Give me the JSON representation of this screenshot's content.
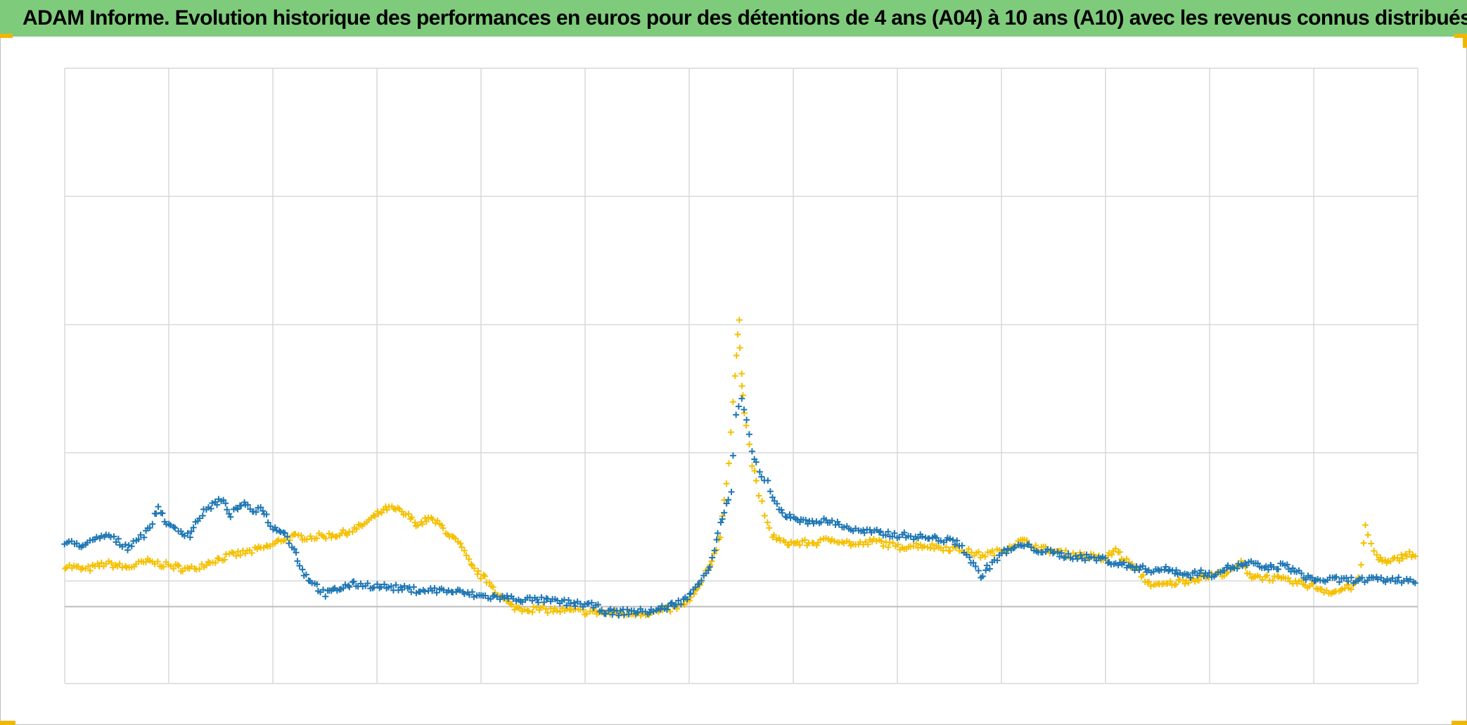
{
  "title": "ADAM Informe. Evolution historique des performances en euros pour des détentions de 4 ans (A04) à 10 ans (A10) avec les revenus connus distribués",
  "colors": {
    "title_bar": "#7fcb7c",
    "series_a04": "#1f77b4",
    "series_a10": "#f5c000",
    "grid": "#d9d9d9",
    "accent_corner": "#f2b600"
  },
  "chart_data": {
    "type": "scatter",
    "title": "ADAM Informe. Evolution historique des performances en euros pour des détentions de 4 ans (A04) à 10 ans (A10) avec les revenus connus distribués",
    "xlabel": "",
    "ylabel": "",
    "x_tick_labels": [],
    "y_tick_labels": [],
    "grid": true,
    "legend": "none",
    "marker": "+",
    "xlim": [
      0,
      1300
    ],
    "ylim": [
      -75,
      525
    ],
    "series": [
      {
        "color": "#1f77b4",
        "points": [
          [
            0,
            62
          ],
          [
            20,
            60
          ],
          [
            40,
            70
          ],
          [
            60,
            58
          ],
          [
            80,
            74
          ],
          [
            90,
            97
          ],
          [
            100,
            78
          ],
          [
            120,
            70
          ],
          [
            130,
            88
          ],
          [
            140,
            98
          ],
          [
            150,
            104
          ],
          [
            160,
            90
          ],
          [
            170,
            100
          ],
          [
            180,
            94
          ],
          [
            190,
            96
          ],
          [
            200,
            76
          ],
          [
            210,
            75
          ],
          [
            220,
            56
          ],
          [
            230,
            32
          ],
          [
            240,
            22
          ],
          [
            250,
            12
          ],
          [
            260,
            16
          ],
          [
            270,
            20
          ],
          [
            280,
            22
          ],
          [
            300,
            20
          ],
          [
            320,
            18
          ],
          [
            340,
            16
          ],
          [
            360,
            16
          ],
          [
            380,
            14
          ],
          [
            400,
            10
          ],
          [
            420,
            9
          ],
          [
            440,
            7
          ],
          [
            460,
            6
          ],
          [
            480,
            4
          ],
          [
            500,
            2
          ],
          [
            510,
            0
          ],
          [
            520,
            -5
          ],
          [
            530,
            -6
          ],
          [
            540,
            -5
          ],
          [
            560,
            -5
          ],
          [
            570,
            -3
          ],
          [
            580,
            0
          ],
          [
            590,
            4
          ],
          [
            600,
            10
          ],
          [
            610,
            25
          ],
          [
            620,
            40
          ],
          [
            630,
            80
          ],
          [
            640,
            110
          ],
          [
            645,
            185
          ],
          [
            650,
            200
          ],
          [
            655,
            185
          ],
          [
            660,
            150
          ],
          [
            665,
            140
          ],
          [
            670,
            125
          ],
          [
            675,
            120
          ],
          [
            680,
            105
          ],
          [
            690,
            90
          ],
          [
            700,
            88
          ],
          [
            710,
            82
          ],
          [
            720,
            84
          ],
          [
            740,
            82
          ],
          [
            760,
            74
          ],
          [
            780,
            72
          ],
          [
            800,
            70
          ],
          [
            820,
            68
          ],
          [
            840,
            66
          ],
          [
            860,
            62
          ],
          [
            880,
            30
          ],
          [
            900,
            52
          ],
          [
            920,
            60
          ],
          [
            940,
            54
          ],
          [
            960,
            50
          ],
          [
            980,
            48
          ],
          [
            1000,
            46
          ],
          [
            1010,
            42
          ],
          [
            1020,
            40
          ],
          [
            1030,
            38
          ],
          [
            1040,
            36
          ],
          [
            1050,
            36
          ],
          [
            1060,
            36
          ],
          [
            1070,
            34
          ],
          [
            1080,
            30
          ],
          [
            1090,
            34
          ],
          [
            1100,
            30
          ],
          [
            1110,
            36
          ],
          [
            1120,
            38
          ],
          [
            1130,
            40
          ],
          [
            1140,
            42
          ],
          [
            1150,
            38
          ],
          [
            1160,
            38
          ],
          [
            1170,
            40
          ],
          [
            1180,
            36
          ],
          [
            1190,
            30
          ],
          [
            1200,
            26
          ],
          [
            1220,
            26
          ],
          [
            1240,
            26
          ],
          [
            1260,
            26
          ],
          [
            1280,
            26
          ],
          [
            1300,
            26
          ]
        ]
      },
      {
        "color": "#f5c000",
        "points": [
          [
            0,
            40
          ],
          [
            20,
            36
          ],
          [
            40,
            42
          ],
          [
            60,
            38
          ],
          [
            80,
            44
          ],
          [
            100,
            40
          ],
          [
            110,
            38
          ],
          [
            120,
            36
          ],
          [
            140,
            44
          ],
          [
            160,
            50
          ],
          [
            180,
            54
          ],
          [
            200,
            60
          ],
          [
            210,
            66
          ],
          [
            220,
            68
          ],
          [
            240,
            68
          ],
          [
            260,
            70
          ],
          [
            270,
            72
          ],
          [
            280,
            76
          ],
          [
            290,
            82
          ],
          [
            300,
            90
          ],
          [
            310,
            96
          ],
          [
            320,
            94
          ],
          [
            330,
            88
          ],
          [
            340,
            80
          ],
          [
            350,
            86
          ],
          [
            360,
            80
          ],
          [
            370,
            70
          ],
          [
            380,
            60
          ],
          [
            390,
            40
          ],
          [
            400,
            30
          ],
          [
            410,
            22
          ],
          [
            420,
            8
          ],
          [
            430,
            0
          ],
          [
            440,
            -2
          ],
          [
            460,
            -3
          ],
          [
            480,
            -4
          ],
          [
            500,
            -5
          ],
          [
            520,
            -6
          ],
          [
            540,
            -7
          ],
          [
            560,
            -6
          ],
          [
            570,
            -5
          ],
          [
            580,
            -3
          ],
          [
            590,
            0
          ],
          [
            600,
            5
          ],
          [
            610,
            20
          ],
          [
            620,
            40
          ],
          [
            630,
            70
          ],
          [
            638,
            140
          ],
          [
            642,
            200
          ],
          [
            645,
            245
          ],
          [
            648,
            280
          ],
          [
            650,
            230
          ],
          [
            652,
            205
          ],
          [
            655,
            175
          ],
          [
            660,
            140
          ],
          [
            665,
            120
          ],
          [
            670,
            100
          ],
          [
            675,
            80
          ],
          [
            680,
            70
          ],
          [
            690,
            62
          ],
          [
            700,
            62
          ],
          [
            720,
            62
          ],
          [
            740,
            66
          ],
          [
            760,
            60
          ],
          [
            780,
            64
          ],
          [
            800,
            58
          ],
          [
            820,
            60
          ],
          [
            840,
            58
          ],
          [
            860,
            56
          ],
          [
            880,
            50
          ],
          [
            900,
            54
          ],
          [
            910,
            60
          ],
          [
            920,
            64
          ],
          [
            940,
            56
          ],
          [
            960,
            52
          ],
          [
            980,
            50
          ],
          [
            1000,
            46
          ],
          [
            1010,
            56
          ],
          [
            1020,
            44
          ],
          [
            1030,
            36
          ],
          [
            1040,
            24
          ],
          [
            1050,
            20
          ],
          [
            1060,
            22
          ],
          [
            1070,
            24
          ],
          [
            1080,
            26
          ],
          [
            1090,
            28
          ],
          [
            1100,
            30
          ],
          [
            1110,
            32
          ],
          [
            1120,
            34
          ],
          [
            1130,
            42
          ],
          [
            1140,
            30
          ],
          [
            1160,
            28
          ],
          [
            1180,
            24
          ],
          [
            1190,
            22
          ],
          [
            1200,
            20
          ],
          [
            1210,
            16
          ],
          [
            1220,
            14
          ],
          [
            1230,
            18
          ],
          [
            1240,
            20
          ],
          [
            1245,
            40
          ],
          [
            1250,
            80
          ],
          [
            1255,
            60
          ],
          [
            1260,
            50
          ],
          [
            1270,
            42
          ],
          [
            1280,
            46
          ],
          [
            1290,
            52
          ],
          [
            1300,
            48
          ]
        ]
      }
    ]
  }
}
